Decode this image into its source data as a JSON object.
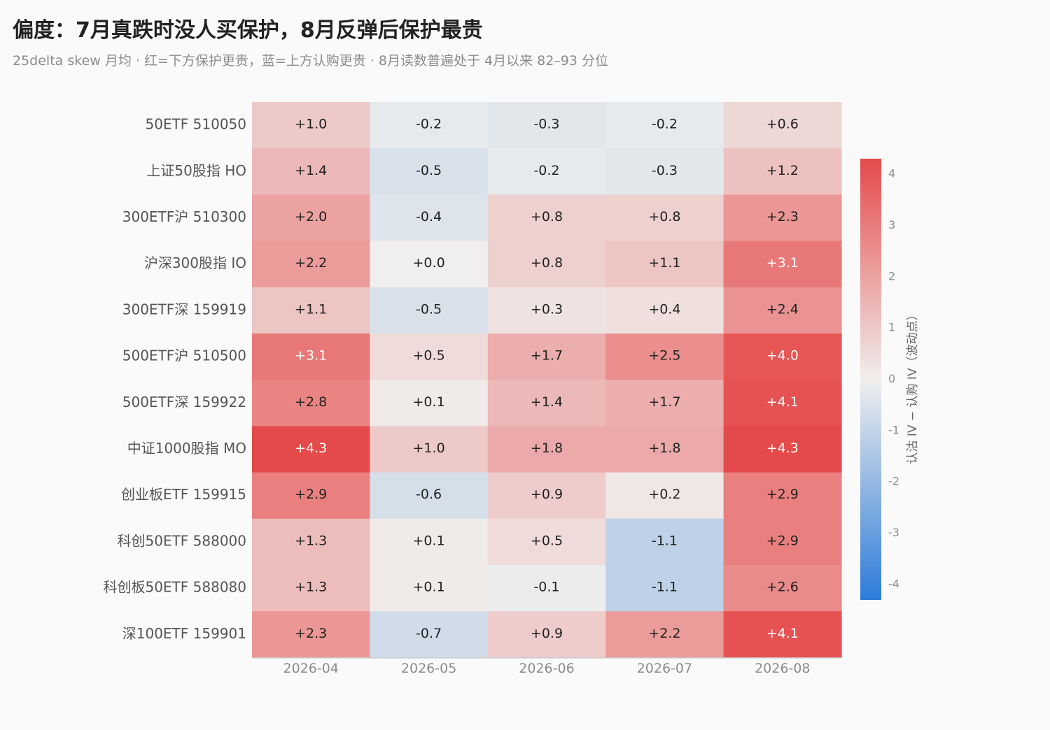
{
  "title": "偏度：7月真跌时没人买保护，8月反弹后保护最贵",
  "subtitle": "25delta skew 月均 · 红=下方保护更贵，蓝=上方认购更贵 · 8月读数普遍处于 4月以来 82–93 分位",
  "chart_data": {
    "type": "heatmap",
    "title": "偏度：7月真跌时没人买保护，8月反弹后保护最贵",
    "subtitle": "25delta skew 月均 · 红=下方保护更贵，蓝=上方认购更贵 · 8月读数普遍处于 4月以来 82–93 分位",
    "columns": [
      "2026-04",
      "2026-05",
      "2026-06",
      "2026-07",
      "2026-08"
    ],
    "rows": [
      "50ETF 510050",
      "上证50股指 HO",
      "300ETF沪 510300",
      "沪深300股指 IO",
      "300ETF深 159919",
      "500ETF沪 510500",
      "500ETF深 159922",
      "中证1000股指 MO",
      "创业板ETF 159915",
      "科创50ETF 588000",
      "科创板50ETF 588080",
      "深100ETF 159901"
    ],
    "values": [
      [
        1.0,
        -0.2,
        -0.3,
        -0.2,
        0.6
      ],
      [
        1.4,
        -0.5,
        -0.2,
        -0.3,
        1.2
      ],
      [
        2.0,
        -0.4,
        0.8,
        0.8,
        2.3
      ],
      [
        2.2,
        0.0,
        0.8,
        1.1,
        3.1
      ],
      [
        1.1,
        -0.5,
        0.3,
        0.4,
        2.4
      ],
      [
        3.1,
        0.5,
        1.7,
        2.5,
        4.0
      ],
      [
        2.8,
        0.1,
        1.4,
        1.7,
        4.1
      ],
      [
        4.3,
        1.0,
        1.8,
        1.8,
        4.3
      ],
      [
        2.9,
        -0.6,
        0.9,
        0.2,
        2.9
      ],
      [
        1.3,
        0.1,
        0.5,
        -1.1,
        2.9
      ],
      [
        1.3,
        0.1,
        -0.1,
        -1.1,
        2.6
      ],
      [
        2.3,
        -0.7,
        0.9,
        2.2,
        4.1
      ]
    ],
    "value_labels": [
      [
        "+1.0",
        "-0.2",
        "-0.3",
        "-0.2",
        "+0.6"
      ],
      [
        "+1.4",
        "-0.5",
        "-0.2",
        "-0.3",
        "+1.2"
      ],
      [
        "+2.0",
        "-0.4",
        "+0.8",
        "+0.8",
        "+2.3"
      ],
      [
        "+2.2",
        "+0.0",
        "+0.8",
        "+1.1",
        "+3.1"
      ],
      [
        "+1.1",
        "-0.5",
        "+0.3",
        "+0.4",
        "+2.4"
      ],
      [
        "+3.1",
        "+0.5",
        "+1.7",
        "+2.5",
        "+4.0"
      ],
      [
        "+2.8",
        "+0.1",
        "+1.4",
        "+1.7",
        "+4.1"
      ],
      [
        "+4.3",
        "+1.0",
        "+1.8",
        "+1.8",
        "+4.3"
      ],
      [
        "+2.9",
        "-0.6",
        "+0.9",
        "+0.2",
        "+2.9"
      ],
      [
        "+1.3",
        "+0.1",
        "+0.5",
        "-1.1",
        "+2.9"
      ],
      [
        "+1.3",
        "+0.1",
        "-0.1",
        "-1.1",
        "+2.6"
      ],
      [
        "+2.3",
        "-0.7",
        "+0.9",
        "+2.2",
        "+4.1"
      ]
    ],
    "colorbar": {
      "label": "认沽 IV − 认购 IV（波动点）",
      "range": [
        -4.3,
        4.3
      ],
      "ticks": [
        4,
        3,
        2,
        1,
        0,
        -1,
        -2,
        -3,
        -4
      ],
      "tick_labels": [
        "4",
        "3",
        "2",
        "1",
        "0",
        "-1",
        "-2",
        "-3",
        "-4"
      ]
    },
    "colors": {
      "negative": "#2d7bd9",
      "neutral": "#f0efed",
      "positive": "#e54a4a"
    },
    "grid": false
  }
}
